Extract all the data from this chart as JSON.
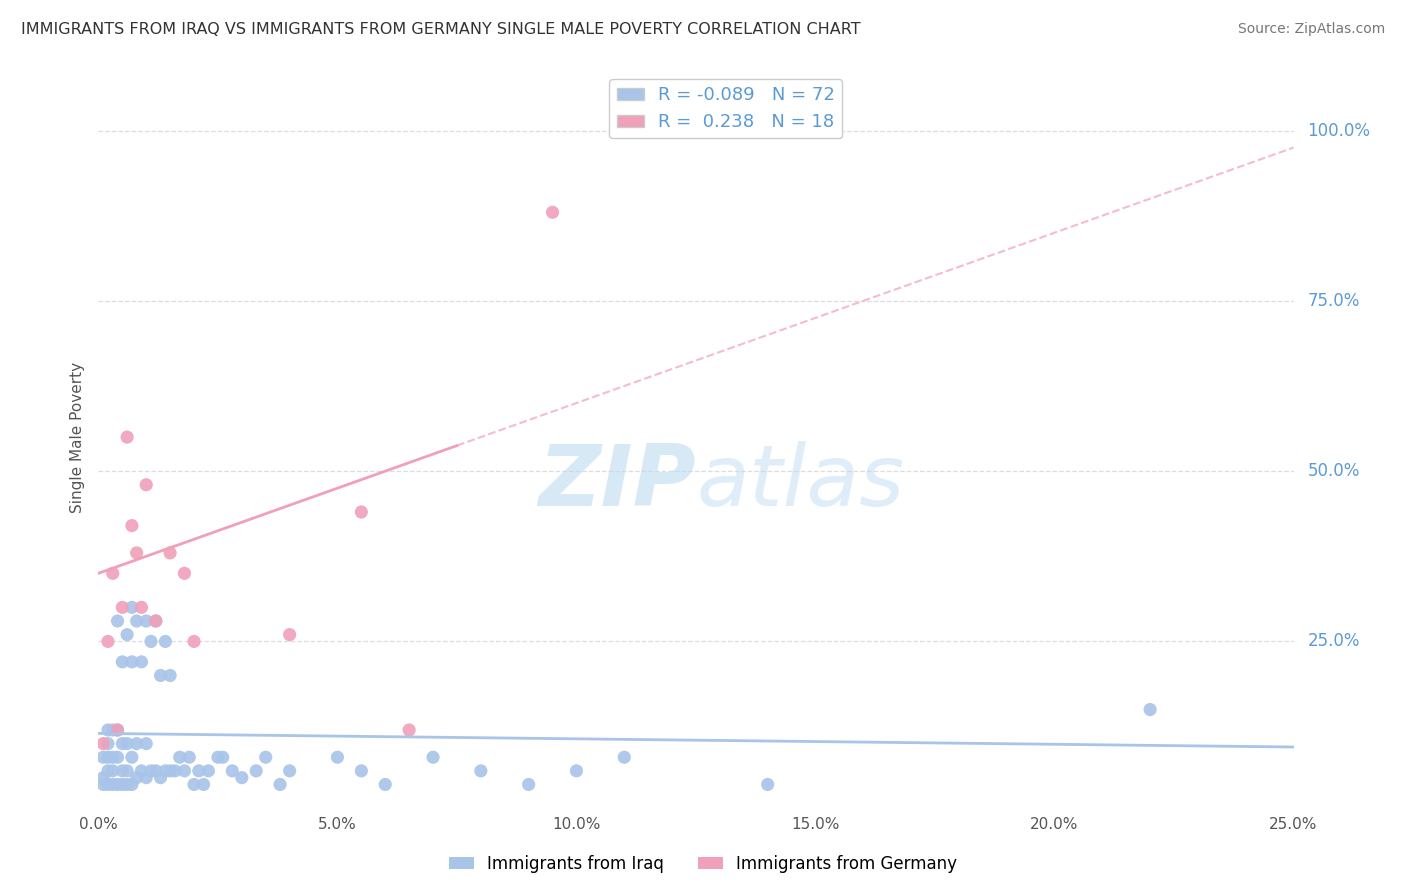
{
  "title": "IMMIGRANTS FROM IRAQ VS IMMIGRANTS FROM GERMANY SINGLE MALE POVERTY CORRELATION CHART",
  "source": "Source: ZipAtlas.com",
  "ylabel": "Single Male Poverty",
  "xlim": [
    0.0,
    0.25
  ],
  "ylim": [
    0.0,
    1.1
  ],
  "xtick_labels": [
    "0.0%",
    "5.0%",
    "10.0%",
    "15.0%",
    "20.0%",
    "25.0%"
  ],
  "xtick_vals": [
    0.0,
    0.05,
    0.1,
    0.15,
    0.2,
    0.25
  ],
  "ytick_labels": [
    "100.0%",
    "75.0%",
    "50.0%",
    "25.0%"
  ],
  "ytick_vals": [
    1.0,
    0.75,
    0.5,
    0.25
  ],
  "iraq_color": "#a8c4e8",
  "germany_color": "#f0a0b8",
  "iraq_R": -0.089,
  "iraq_N": 72,
  "germany_R": 0.238,
  "germany_N": 18,
  "legend_label_iraq": "Immigrants from Iraq",
  "legend_label_germany": "Immigrants from Germany",
  "legend_text_color": "#5b9bd5",
  "right_label_color": "#5b9bd5",
  "iraq_scatter_x": [
    0.001,
    0.001,
    0.001,
    0.002,
    0.002,
    0.002,
    0.002,
    0.002,
    0.003,
    0.003,
    0.003,
    0.003,
    0.004,
    0.004,
    0.004,
    0.004,
    0.005,
    0.005,
    0.005,
    0.005,
    0.006,
    0.006,
    0.006,
    0.006,
    0.007,
    0.007,
    0.007,
    0.007,
    0.008,
    0.008,
    0.008,
    0.009,
    0.009,
    0.01,
    0.01,
    0.01,
    0.011,
    0.011,
    0.012,
    0.012,
    0.013,
    0.013,
    0.014,
    0.014,
    0.015,
    0.015,
    0.016,
    0.017,
    0.018,
    0.019,
    0.02,
    0.021,
    0.022,
    0.023,
    0.025,
    0.026,
    0.028,
    0.03,
    0.033,
    0.035,
    0.038,
    0.04,
    0.05,
    0.055,
    0.06,
    0.07,
    0.08,
    0.09,
    0.1,
    0.11,
    0.14,
    0.22
  ],
  "iraq_scatter_y": [
    0.04,
    0.05,
    0.08,
    0.04,
    0.06,
    0.08,
    0.1,
    0.12,
    0.04,
    0.06,
    0.08,
    0.12,
    0.04,
    0.08,
    0.12,
    0.28,
    0.04,
    0.06,
    0.1,
    0.22,
    0.04,
    0.06,
    0.1,
    0.26,
    0.04,
    0.08,
    0.22,
    0.3,
    0.05,
    0.1,
    0.28,
    0.06,
    0.22,
    0.05,
    0.1,
    0.28,
    0.06,
    0.25,
    0.06,
    0.28,
    0.05,
    0.2,
    0.06,
    0.25,
    0.06,
    0.2,
    0.06,
    0.08,
    0.06,
    0.08,
    0.04,
    0.06,
    0.04,
    0.06,
    0.08,
    0.08,
    0.06,
    0.05,
    0.06,
    0.08,
    0.04,
    0.06,
    0.08,
    0.06,
    0.04,
    0.08,
    0.06,
    0.04,
    0.06,
    0.08,
    0.04,
    0.15
  ],
  "germany_scatter_x": [
    0.001,
    0.002,
    0.003,
    0.004,
    0.005,
    0.006,
    0.007,
    0.008,
    0.009,
    0.01,
    0.012,
    0.015,
    0.018,
    0.02,
    0.04,
    0.055,
    0.065,
    0.095
  ],
  "germany_scatter_y": [
    0.1,
    0.25,
    0.35,
    0.12,
    0.3,
    0.55,
    0.42,
    0.38,
    0.3,
    0.48,
    0.28,
    0.38,
    0.35,
    0.25,
    0.26,
    0.44,
    0.12,
    0.88
  ],
  "iraq_line_intercept": 0.115,
  "iraq_line_slope": -0.08,
  "germany_line_intercept": 0.35,
  "germany_line_slope": 2.5,
  "germany_line_x_solid_end": 0.075,
  "germany_line_x_dashed_end": 0.25,
  "background_color": "#ffffff",
  "grid_color": "#dddddd"
}
